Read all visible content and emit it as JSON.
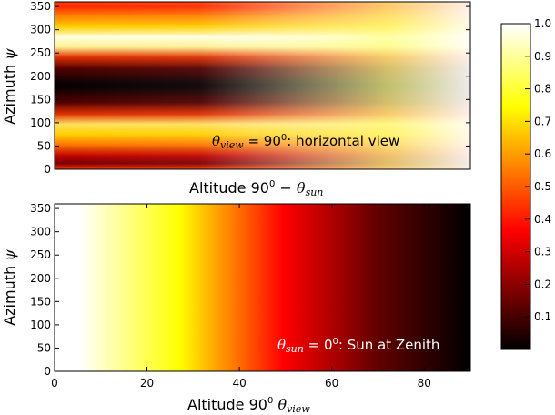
{
  "chart_data": [
    {
      "type": "heatmap",
      "colormap": "hot",
      "title": "",
      "xlabel": "Altitude 90⁰ − θsun",
      "ylabel": "Azimuth ψ",
      "annotation": "θview = 90⁰: horizontal view",
      "annotation_color": "#000000",
      "ylim": [
        0,
        360
      ],
      "yticks": [
        "0",
        "50",
        "100",
        "150",
        "200",
        "250",
        "300",
        "350"
      ],
      "xticks": [],
      "description_values": {
        "azimuth_minimum": 180,
        "azimuth_maxima": [
          0,
          270,
          360
        ],
        "azimuth_secondary_low": 90,
        "trend": "contrast fades toward bright (≈1.0) as altitude increases"
      }
    },
    {
      "type": "heatmap",
      "colormap": "hot",
      "title": "",
      "xlabel": "Altitude 90⁰  θview",
      "ylabel": "Azimuth ψ",
      "annotation": "θsun = 0⁰: Sun at Zenith",
      "annotation_color": "#ffffff",
      "xlim": [
        0,
        90
      ],
      "ylim": [
        0,
        360
      ],
      "xticks": [
        "0",
        "20",
        "40",
        "60",
        "80"
      ],
      "yticks": [
        "0",
        "50",
        "100",
        "150",
        "200",
        "250",
        "300",
        "350"
      ],
      "description_values": {
        "value_at_x0": 1.0,
        "value_at_x90": 0.0,
        "trend": "independent of azimuth; decreases monotonically with altitude"
      }
    }
  ],
  "colorbar": {
    "label": "",
    "range": [
      0.0,
      1.0
    ],
    "ticks": [
      "0.1",
      "0.2",
      "0.3",
      "0.4",
      "0.5",
      "0.6",
      "0.7",
      "0.8",
      "0.9",
      "1.0"
    ]
  },
  "text": {
    "top_ylabel": "Azimuth",
    "top_ylabel_sym": "ψ",
    "top_xlabel_main": "Altitude 90",
    "top_xlabel_sup": "0",
    "top_xlabel_minus": " − ",
    "top_xlabel_theta": "θ",
    "top_xlabel_sub": "sun",
    "top_annot_theta": "θ",
    "top_annot_sub": "view",
    "top_annot_eq": " = 90",
    "top_annot_sup": "0",
    "top_annot_rest": ": horizontal view",
    "bot_ylabel": "Azimuth",
    "bot_ylabel_sym": "ψ",
    "bot_xlabel_main": "Altitude 90",
    "bot_xlabel_sup": "0",
    "bot_xlabel_theta": "θ",
    "bot_xlabel_sub": "view",
    "bot_annot_theta": "θ",
    "bot_annot_sub": "sun",
    "bot_annot_eq": " = 0",
    "bot_annot_sup": "0",
    "bot_annot_rest": ": Sun at Zenith"
  }
}
